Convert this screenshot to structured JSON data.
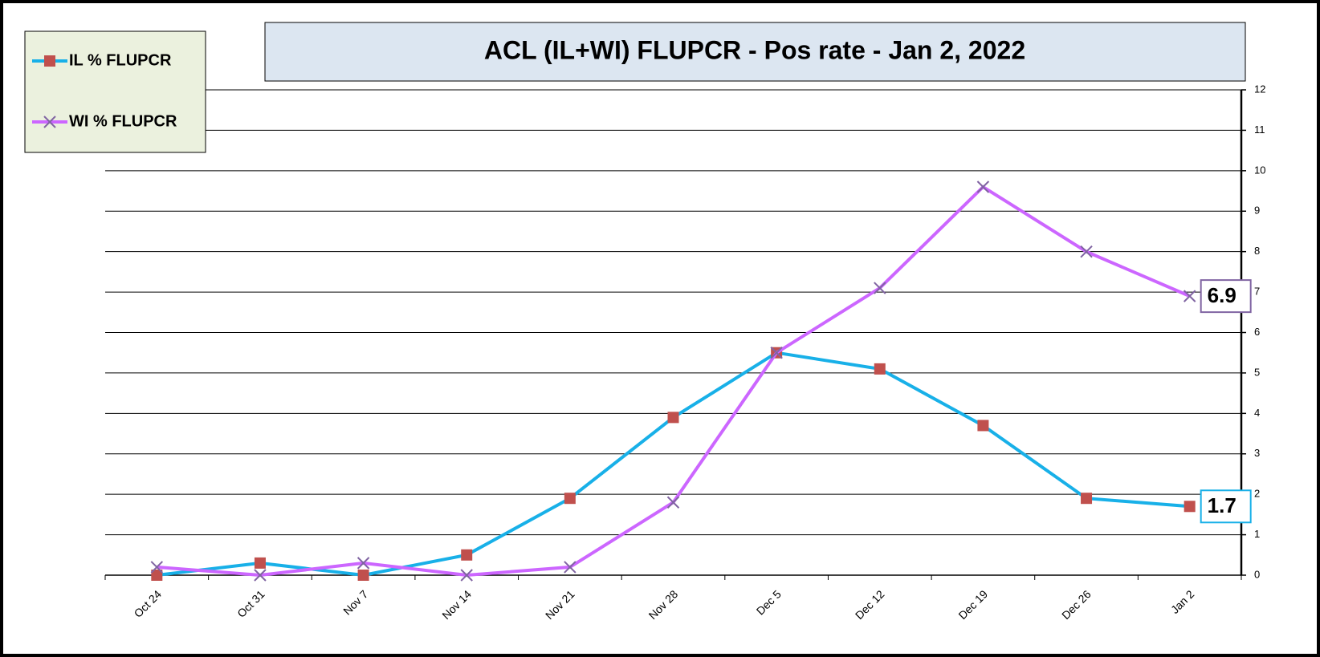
{
  "chart_data": {
    "type": "line",
    "title": "ACL (IL+WI) FLUPCR -  Pos rate  - Jan 2, 2022",
    "categories": [
      "Oct 24",
      "Oct 31",
      "Nov 7",
      "Nov 14",
      "Nov 21",
      "Nov 28",
      "Dec 5",
      "Dec 12",
      "Dec 19",
      "Dec 26",
      "Jan 2"
    ],
    "series": [
      {
        "name": "IL % FLUPCR",
        "color": "#18b0e8",
        "marker_color": "#c0504d",
        "values": [
          0,
          0.3,
          0,
          0.5,
          1.9,
          3.9,
          5.5,
          5.1,
          3.7,
          1.9,
          1.7
        ]
      },
      {
        "name": "WI % FLUPCR",
        "color": "#cc66ff",
        "marker_color": "#8064a2",
        "values": [
          0.2,
          0,
          0.3,
          0,
          0.2,
          1.8,
          5.5,
          7.1,
          9.6,
          8.0,
          6.9
        ]
      }
    ],
    "ylim": [
      0,
      12
    ],
    "yticks": [
      0,
      1,
      2,
      3,
      4,
      5,
      6,
      7,
      8,
      9,
      10,
      11,
      12
    ],
    "grid": true,
    "legend": "top-left"
  }
}
